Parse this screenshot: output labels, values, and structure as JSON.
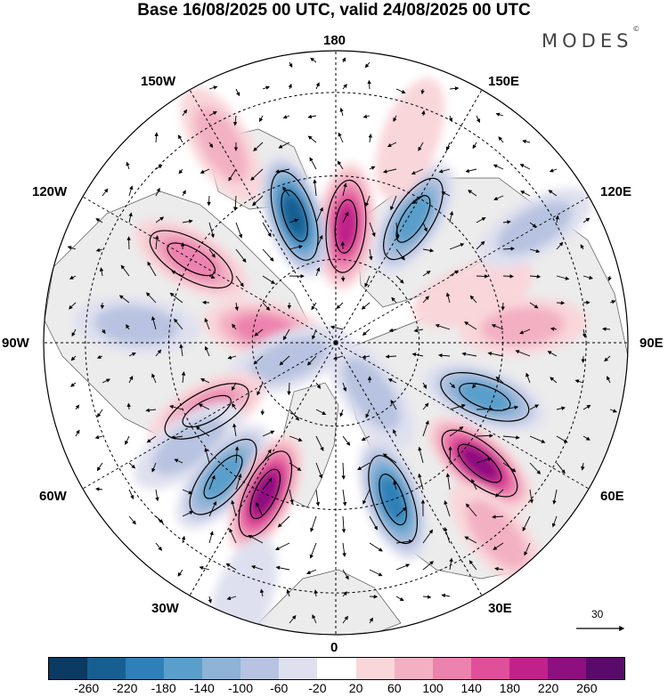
{
  "title": "Base 16/08/2025 00 UTC, valid 24/08/2025 00 UTC",
  "brand": "MODES",
  "brand_mark": "©",
  "longitude_labels": {
    "top": "180",
    "bottom": "0",
    "left": "90W",
    "right": "90E",
    "upper_left": "150W",
    "upper_right": "150E",
    "mid_upper_left": "120W",
    "mid_upper_right": "120E",
    "mid_lower_left": "60W",
    "mid_lower_right": "60E",
    "lower_left": "30W",
    "lower_right": "30E"
  },
  "wind_vector_scale": "30",
  "colorbar": {
    "ticks": [
      "-260",
      "-220",
      "-180",
      "-140",
      "-100",
      "-60",
      "-20",
      "20",
      "60",
      "100",
      "140",
      "180",
      "220",
      "260"
    ],
    "colors": [
      "#0b3a62",
      "#175f91",
      "#2f80b8",
      "#5a9fcb",
      "#8eb3d5",
      "#b7c3e0",
      "#dfe0ef",
      "#ffffff",
      "#f9d6da",
      "#f3b0c3",
      "#ec82ae",
      "#e04f99",
      "#c0228a",
      "#8e0f7f",
      "#5a0a6b"
    ]
  },
  "anomaly_centers": [
    {
      "lon": 175,
      "lat": 62,
      "value": 190
    },
    {
      "lon": 148,
      "lat": 55,
      "value": -150
    },
    {
      "lon": -162,
      "lat": 58,
      "value": -230
    },
    {
      "lon": -120,
      "lat": 50,
      "value": 130
    },
    {
      "lon": -100,
      "lat": 73,
      "value": 100
    },
    {
      "lon": -70,
      "lat": 78,
      "value": -80
    },
    {
      "lon": -62,
      "lat": 55,
      "value": 120
    },
    {
      "lon": -55,
      "lat": 47,
      "value": -90
    },
    {
      "lon": -40,
      "lat": 48,
      "value": -150
    },
    {
      "lon": -25,
      "lat": 50,
      "value": 250
    },
    {
      "lon": 20,
      "lat": 50,
      "value": -210
    },
    {
      "lon": 50,
      "lat": 45,
      "value": 230
    },
    {
      "lon": 70,
      "lat": 52,
      "value": -170
    },
    {
      "lon": 95,
      "lat": 45,
      "value": 60
    },
    {
      "lon": 110,
      "lat": 55,
      "value": 50
    },
    {
      "lon": 120,
      "lat": 35,
      "value": -60
    },
    {
      "lon": -95,
      "lat": 42,
      "value": -60
    },
    {
      "lon": 35,
      "lat": 75,
      "value": -70
    },
    {
      "lon": -150,
      "lat": 35,
      "value": 60
    },
    {
      "lon": 40,
      "lat": 30,
      "value": 70
    },
    {
      "lon": -20,
      "lat": 25,
      "value": -50
    },
    {
      "lon": 160,
      "lat": 38,
      "value": 50
    }
  ],
  "colors": {
    "land": "#f0f0f0",
    "ocean": "#ffffff",
    "grid": "#000000"
  }
}
